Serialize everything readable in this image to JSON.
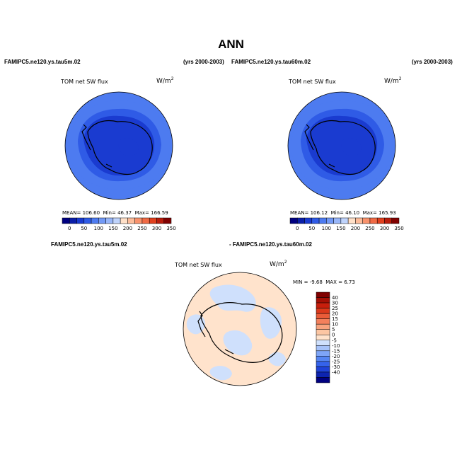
{
  "figure": {
    "title": "ANN",
    "top_left_case": "FAMIPC5.ne120.ys.tau5m.02",
    "top_left_years": "(yrs 2000-2003)",
    "top_right_case": "FAMIPC5.ne120.ys.tau60m.02",
    "top_right_years": "(yrs 2000-2003)",
    "diff_case_a": "FAMIPC5.ne120.ys.tau5m.02",
    "diff_case_b": "- FAMIPC5.ne120.ys.tau60m.02"
  },
  "colors": {
    "abs_scale": [
      "#000080",
      "#0a1ea8",
      "#1a3bd0",
      "#2f5be6",
      "#4d7bf0",
      "#7299f5",
      "#98b6f8",
      "#bfd3fb",
      "#ffe0c8",
      "#fcbc9a",
      "#f8926c",
      "#f06a45",
      "#e0401e",
      "#b81c0c",
      "#800000"
    ],
    "diff_scale": [
      "#000080",
      "#0d24b0",
      "#1f43d8",
      "#3563eb",
      "#5585f2",
      "#7ea5f7",
      "#a6c2f9",
      "#cfe0fc",
      "#ffe3cc",
      "#fcc6a3",
      "#f8a37e",
      "#f3805c",
      "#ea5c39",
      "#dc3a1c",
      "#c81e0c",
      "#a50f05",
      "#800000"
    ],
    "coast": "#000000"
  },
  "chart_data": [
    {
      "type": "heatmap",
      "projection": "south-polar-stereographic",
      "title": "TOM net SW flux",
      "units_base": "W/m",
      "units_exp": "2",
      "stats": {
        "mean_label": "MEAN=",
        "mean": "106.60",
        "min_label": "Min=",
        "min": "46.37",
        "max_label": "Max=",
        "max": "166.59"
      },
      "colorbar_labels": [
        "0",
        "50",
        "100",
        "150",
        "200",
        "250",
        "300",
        "350"
      ],
      "colorbar_levels": [
        0,
        25,
        50,
        75,
        100,
        125,
        150,
        175,
        200,
        225,
        250,
        275,
        300,
        325,
        350
      ],
      "regions": {
        "ocean_far": 117,
        "ocean_mid": 105,
        "ocean_near": 88,
        "ice_shelf": 72,
        "continent": 62,
        "interior_low": 52
      }
    },
    {
      "type": "heatmap",
      "projection": "south-polar-stereographic",
      "title": "TOM net SW flux",
      "units_base": "W/m",
      "units_exp": "2",
      "stats": {
        "mean_label": "MEAN=",
        "mean": "106.12",
        "min_label": "Min=",
        "min": "46.10",
        "max_label": "Max=",
        "max": "165.93"
      },
      "colorbar_labels": [
        "0",
        "50",
        "100",
        "150",
        "200",
        "250",
        "300",
        "350"
      ],
      "colorbar_levels": [
        0,
        25,
        50,
        75,
        100,
        125,
        150,
        175,
        200,
        225,
        250,
        275,
        300,
        325,
        350
      ],
      "regions": {
        "ocean_far": 117,
        "ocean_mid": 105,
        "ocean_near": 88,
        "ice_shelf": 72,
        "continent": 62,
        "interior_low": 52
      }
    },
    {
      "type": "heatmap",
      "projection": "south-polar-stereographic",
      "title": "TOM net SW flux",
      "units_base": "W/m",
      "units_exp": "2",
      "stats": {
        "min_label": "MIN =",
        "min": "-9.68",
        "max_label": "MAX =",
        "max": "6.73"
      },
      "colorbar_labels": [
        "40",
        "30",
        "25",
        "20",
        "15",
        "10",
        "5",
        "0",
        "-5",
        "-10",
        "-15",
        "-20",
        "-25",
        "-30",
        "-40"
      ],
      "regions": {
        "background": 2,
        "patches": -2
      }
    }
  ]
}
